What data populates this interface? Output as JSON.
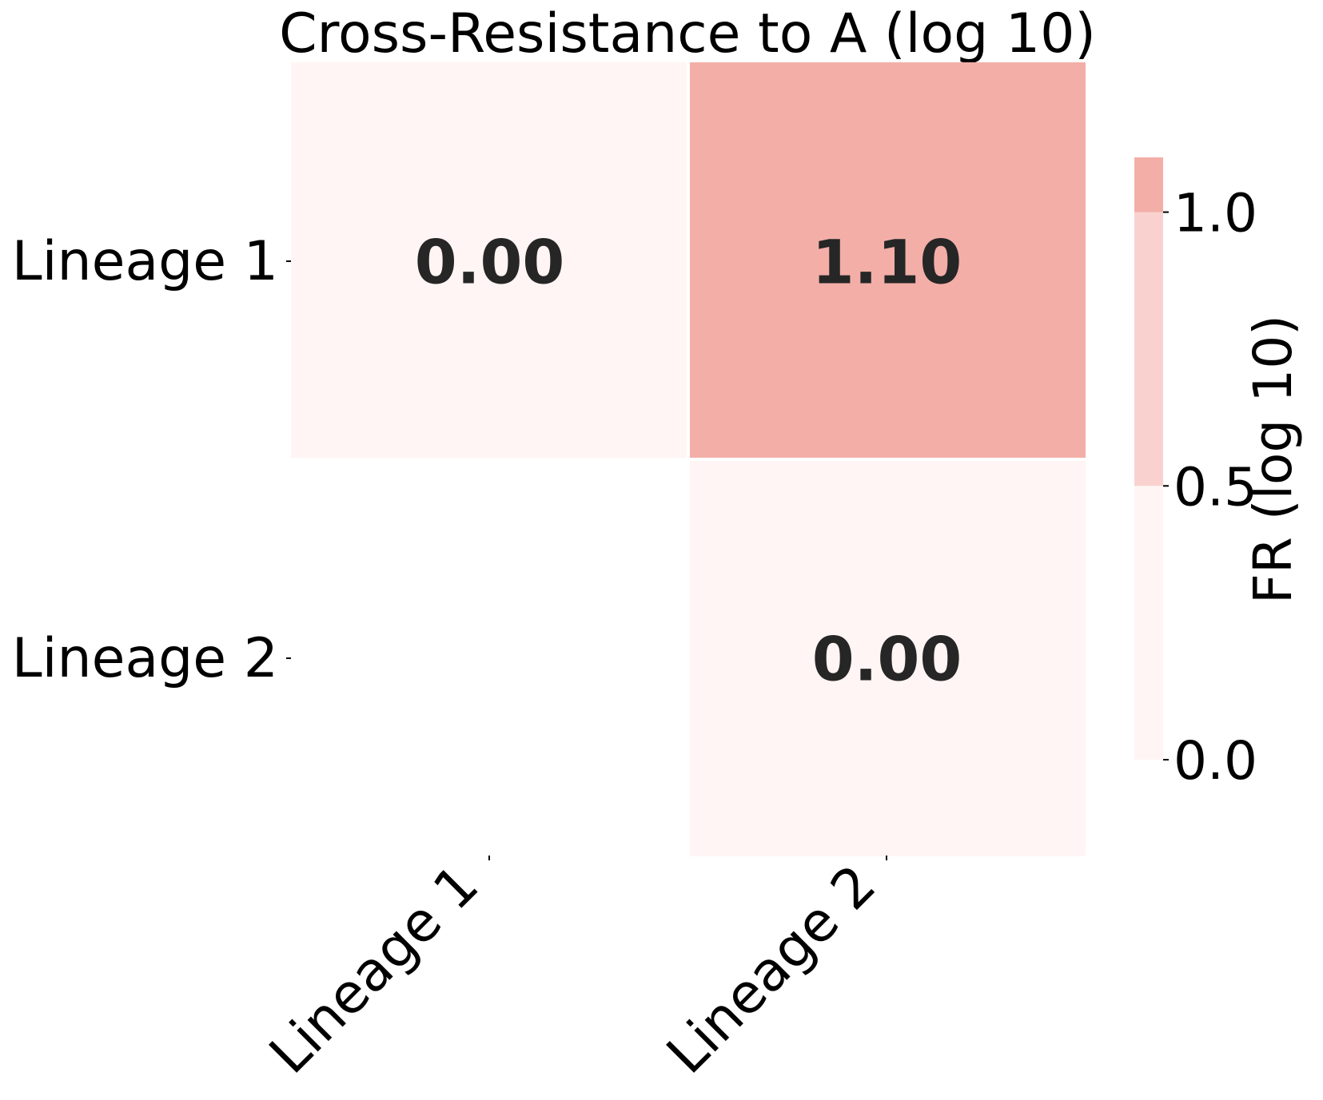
{
  "chart_data": {
    "type": "heatmap",
    "title": "Cross-Resistance to A (log 10)",
    "rows": [
      "Lineage 1",
      "Lineage 2"
    ],
    "columns": [
      "Lineage 1",
      "Lineage 2"
    ],
    "values": [
      [
        0.0,
        1.1
      ],
      [
        null,
        0.0
      ]
    ],
    "value_labels": [
      [
        "0.00",
        "1.10"
      ],
      [
        "",
        "0.00"
      ]
    ],
    "xlabel": "",
    "ylabel": "",
    "colorbar": {
      "label": "FR (log 10)",
      "range": [
        0.0,
        1.1
      ],
      "ticks": [
        0.0,
        0.5,
        1.0
      ],
      "tick_labels": [
        "0.0",
        "0.5",
        "1.0"
      ],
      "bins": [
        {
          "from": 0.0,
          "to": 0.5,
          "color": "#fff5f4"
        },
        {
          "from": 0.5,
          "to": 1.0,
          "color": "#f9d2cf"
        },
        {
          "from": 1.0,
          "to": 1.1,
          "color": "#f3aea8"
        }
      ]
    },
    "grid": false,
    "legend": "right"
  }
}
